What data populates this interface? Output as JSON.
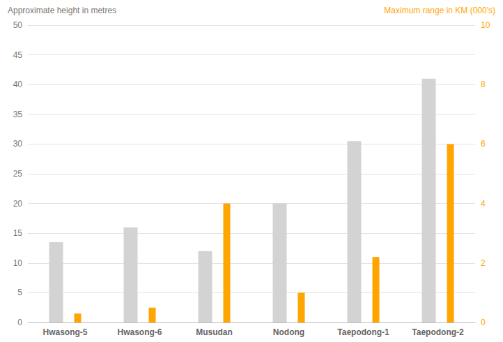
{
  "chart_data": {
    "type": "bar",
    "ylabel": "Approximate height in metres",
    "y2label": "Maximum range in KM (000's)",
    "categories": [
      "Hwasong-5",
      "Hwasong-6",
      "Musudan",
      "Nodong",
      "Taepodong-1",
      "Taepodong-2"
    ],
    "series": [
      {
        "values": [
          13.5,
          16,
          12,
          20,
          30.5,
          41
        ],
        "color": "#d3d3d3"
      },
      {
        "values": [
          0.3,
          0.5,
          4,
          1,
          2.2,
          6
        ],
        "color": "#ffa500",
        "axis": "y2"
      }
    ],
    "ylim": [
      0,
      50
    ],
    "yticks": [
      0,
      5,
      10,
      15,
      20,
      25,
      30,
      35,
      40,
      45,
      50
    ],
    "y2lim": [
      0,
      10
    ],
    "y2ticks": [
      0,
      2,
      4,
      6,
      8,
      10
    ],
    "grid": true
  }
}
